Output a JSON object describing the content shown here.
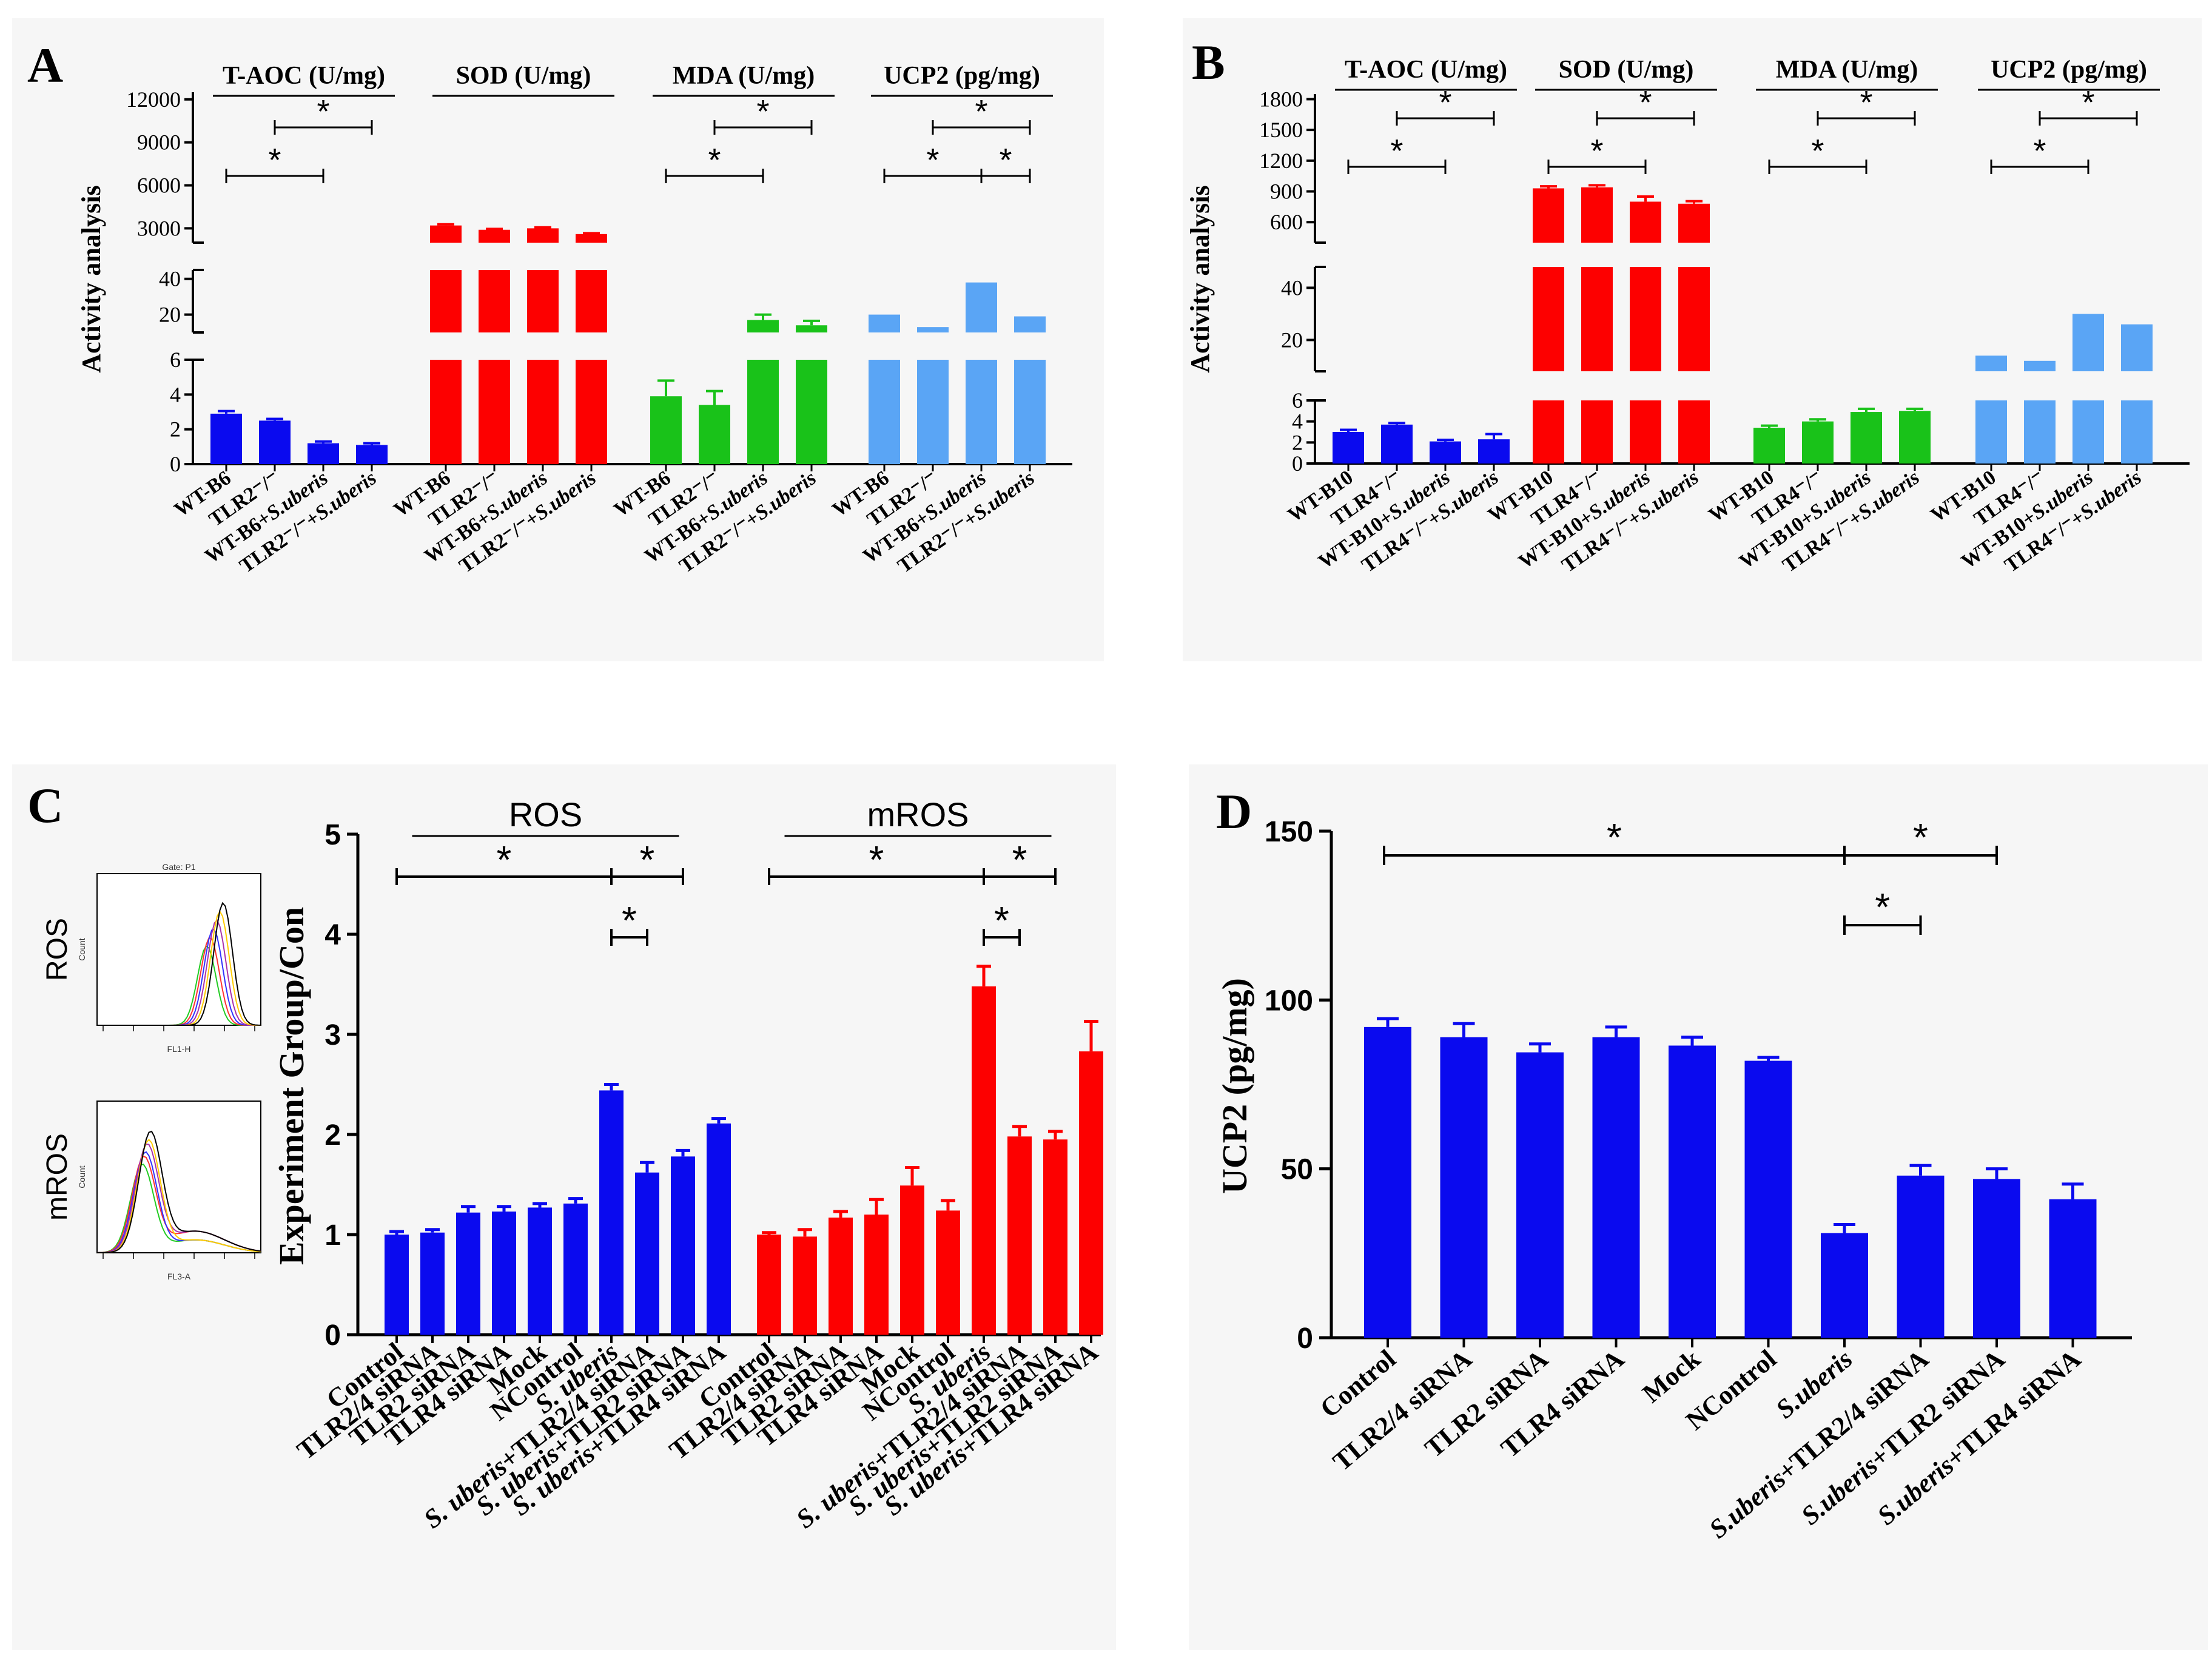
{
  "figure_labels": {
    "A": "A",
    "B": "B",
    "C": "C",
    "D": "D"
  },
  "chart_data": [
    {
      "panel": "A",
      "type": "bar",
      "ylabel": "Activity analysis",
      "y_axis_segments": [
        {
          "range": [
            0,
            6
          ],
          "ticks": [
            "0",
            "2",
            "4",
            "6"
          ]
        },
        {
          "range": [
            10,
            45
          ],
          "ticks": [
            "20",
            "40"
          ]
        },
        {
          "range": [
            2000,
            12500
          ],
          "ticks": [
            "3000",
            "6000",
            "9000",
            "12000"
          ]
        }
      ],
      "groups": [
        {
          "title": "T-AOC (U/mg)",
          "color": "#0a0aef",
          "categories": [
            "WT-B6",
            "TLR2⁻/⁻",
            "WT-B6+S.uberis",
            "TLR2⁻/⁻+S.uberis"
          ],
          "values": [
            2.9,
            2.5,
            1.2,
            1.1
          ],
          "errors": [
            0.15,
            0.1,
            0.1,
            0.1
          ],
          "sig": [
            {
              "from": 0,
              "to": 2,
              "label": "*"
            },
            {
              "from": 1,
              "to": 3,
              "label": "*"
            }
          ]
        },
        {
          "title": "SOD (U/mg)",
          "color": "#fd0000",
          "categories": [
            "WT-B6",
            "TLR2⁻/⁻",
            "WT-B6+S.uberis",
            "TLR2⁻/⁻+S.uberis"
          ],
          "values": [
            3200,
            2900,
            3000,
            2600
          ],
          "errors": [
            80,
            60,
            70,
            60
          ],
          "sig": []
        },
        {
          "title": "MDA (U/mg)",
          "color": "#19c219",
          "categories": [
            "WT-B6",
            "TLR2⁻/⁻",
            "WT-B6+S.uberis",
            "TLR2⁻/⁻+S.uberis"
          ],
          "values": [
            3.9,
            3.4,
            17,
            14
          ],
          "errors": [
            0.9,
            0.8,
            3,
            2.5
          ],
          "sig": [
            {
              "from": 0,
              "to": 2,
              "label": "*"
            },
            {
              "from": 1,
              "to": 3,
              "label": "*"
            }
          ]
        },
        {
          "title": "UCP2 (pg/mg)",
          "color": "#5aa5f5",
          "categories": [
            "WT-B6",
            "TLR2⁻/⁻",
            "WT-B6+S.uberis",
            "TLR2⁻/⁻+S.uberis"
          ],
          "values": [
            20,
            13,
            38,
            19
          ],
          "errors": [
            0,
            0,
            0,
            0
          ],
          "sig": [
            {
              "from": 0,
              "to": 2,
              "label": "*"
            },
            {
              "from": 1,
              "to": 3,
              "label": "*"
            },
            {
              "from": 2,
              "to": 3,
              "label": "*"
            }
          ]
        }
      ]
    },
    {
      "panel": "B",
      "type": "bar",
      "ylabel": "Activity analysis",
      "y_axis_segments": [
        {
          "range": [
            0,
            6
          ],
          "ticks": [
            "0",
            "2",
            "4",
            "6"
          ]
        },
        {
          "range": [
            8,
            48
          ],
          "ticks": [
            "20",
            "40"
          ]
        },
        {
          "range": [
            400,
            1850
          ],
          "ticks": [
            "600",
            "900",
            "1200",
            "1500",
            "1800"
          ]
        }
      ],
      "groups": [
        {
          "title": "T-AOC (U/mg)",
          "color": "#0a0aef",
          "categories": [
            "WT-B10",
            "TLR4⁻/⁻",
            "WT-B10+S.uberis",
            "TLR4⁻/⁻+S.uberis"
          ],
          "values": [
            3.0,
            3.7,
            2.1,
            2.3
          ],
          "errors": [
            0.2,
            0.15,
            0.15,
            0.5
          ],
          "sig": [
            {
              "from": 0,
              "to": 2,
              "label": "*"
            },
            {
              "from": 1,
              "to": 3,
              "label": "*"
            }
          ]
        },
        {
          "title": "SOD (U/mg)",
          "color": "#fd0000",
          "categories": [
            "WT-B10",
            "TLR4⁻/⁻",
            "WT-B10+S.uberis",
            "TLR4⁻/⁻+S.uberis"
          ],
          "values": [
            930,
            940,
            800,
            780
          ],
          "errors": [
            20,
            20,
            50,
            25
          ],
          "sig": [
            {
              "from": 0,
              "to": 2,
              "label": "*"
            },
            {
              "from": 1,
              "to": 3,
              "label": "*"
            }
          ]
        },
        {
          "title": "MDA (U/mg)",
          "color": "#19c219",
          "categories": [
            "WT-B10",
            "TLR4⁻/⁻",
            "WT-B10+S.uberis",
            "TLR4⁻/⁻+S.uberis"
          ],
          "values": [
            3.4,
            4.0,
            4.9,
            5.0
          ],
          "errors": [
            0.2,
            0.2,
            0.3,
            0.2
          ],
          "sig": [
            {
              "from": 0,
              "to": 2,
              "label": "*"
            },
            {
              "from": 1,
              "to": 3,
              "label": "*"
            }
          ]
        },
        {
          "title": "UCP2 (pg/mg)",
          "color": "#5aa5f5",
          "categories": [
            "WT-B10",
            "TLR4⁻/⁻",
            "WT-B10+S.uberis",
            "TLR4⁻/⁻+S.uberis"
          ],
          "values": [
            14,
            12,
            30,
            26
          ],
          "errors": [
            0,
            0,
            0,
            0
          ],
          "sig": [
            {
              "from": 0,
              "to": 2,
              "label": "*"
            },
            {
              "from": 1,
              "to": 3,
              "label": "*"
            }
          ]
        }
      ]
    },
    {
      "panel": "C",
      "type": "bar",
      "ylabel": "Experiment Group/Con",
      "ylim": [
        0,
        5
      ],
      "yticks": [
        "0",
        "1",
        "2",
        "3",
        "4",
        "5"
      ],
      "categories": [
        "Control",
        "TLR2/4 siRNA",
        "TLR2 siRNA",
        "TLR4 siRNA",
        "Mock",
        "NControl",
        "S. uberis",
        "S. uberis+TLR2/4 siRNA",
        "S. uberis+TLR2 siRNA",
        "S. uberis+TLR4 siRNA"
      ],
      "series": [
        {
          "name": "ROS",
          "color": "#0a0aef",
          "values": [
            1.0,
            1.02,
            1.22,
            1.23,
            1.27,
            1.31,
            2.44,
            1.62,
            1.78,
            2.11
          ],
          "errors": [
            0.03,
            0.03,
            0.06,
            0.05,
            0.04,
            0.05,
            0.06,
            0.1,
            0.06,
            0.05
          ],
          "sig": [
            {
              "from": 0,
              "to": 6,
              "label": "*",
              "level": 1
            },
            {
              "from": 6,
              "to": 8,
              "label": "*",
              "level": 1
            },
            {
              "from": 6,
              "to": 7,
              "label": "*",
              "level": 2
            }
          ]
        },
        {
          "name": "mROS",
          "color": "#fd0000",
          "values": [
            1.0,
            0.98,
            1.17,
            1.2,
            1.49,
            1.24,
            3.48,
            1.98,
            1.95,
            2.83
          ],
          "errors": [
            0.02,
            0.07,
            0.06,
            0.15,
            0.18,
            0.1,
            0.2,
            0.1,
            0.08,
            0.3
          ],
          "sig": [
            {
              "from": 0,
              "to": 6,
              "label": "*",
              "level": 1
            },
            {
              "from": 6,
              "to": 8,
              "label": "*",
              "level": 1
            },
            {
              "from": 6,
              "to": 7,
              "label": "*",
              "level": 2
            }
          ]
        }
      ],
      "histograms": {
        "top_label": "ROS",
        "bottom_label": "mROS",
        "top_gate": "Gate: P1",
        "top_xlabel": "FL1-H",
        "bottom_xlabel": "FL3-A",
        "y_axis_label": "Count"
      }
    },
    {
      "panel": "D",
      "type": "bar",
      "ylabel": "UCP2 (pg/mg)",
      "ylim": [
        0,
        150
      ],
      "yticks": [
        "0",
        "50",
        "100",
        "150"
      ],
      "color": "#0a0aef",
      "categories": [
        "Control",
        "TLR2/4 siRNA",
        "TLR2 siRNA",
        "TLR4 siRNA",
        "Mock",
        "NControl",
        "S.uberis",
        "S.uberis+TLR2/4 siRNA",
        "S.uberis+TLR2 siRNA",
        "S.uberis+TLR4 siRNA"
      ],
      "values": [
        92,
        89,
        84.5,
        89,
        86.5,
        82,
        31,
        48,
        47,
        41
      ],
      "errors": [
        2.5,
        4,
        2.5,
        3,
        2.5,
        1,
        2.5,
        3,
        3,
        4.5
      ],
      "sig": [
        {
          "from": 0,
          "to": 6,
          "label": "*",
          "level": 1
        },
        {
          "from": 6,
          "to": 8,
          "label": "*",
          "level": 1
        },
        {
          "from": 6,
          "to": 7,
          "label": "*",
          "level": 2
        }
      ]
    }
  ]
}
